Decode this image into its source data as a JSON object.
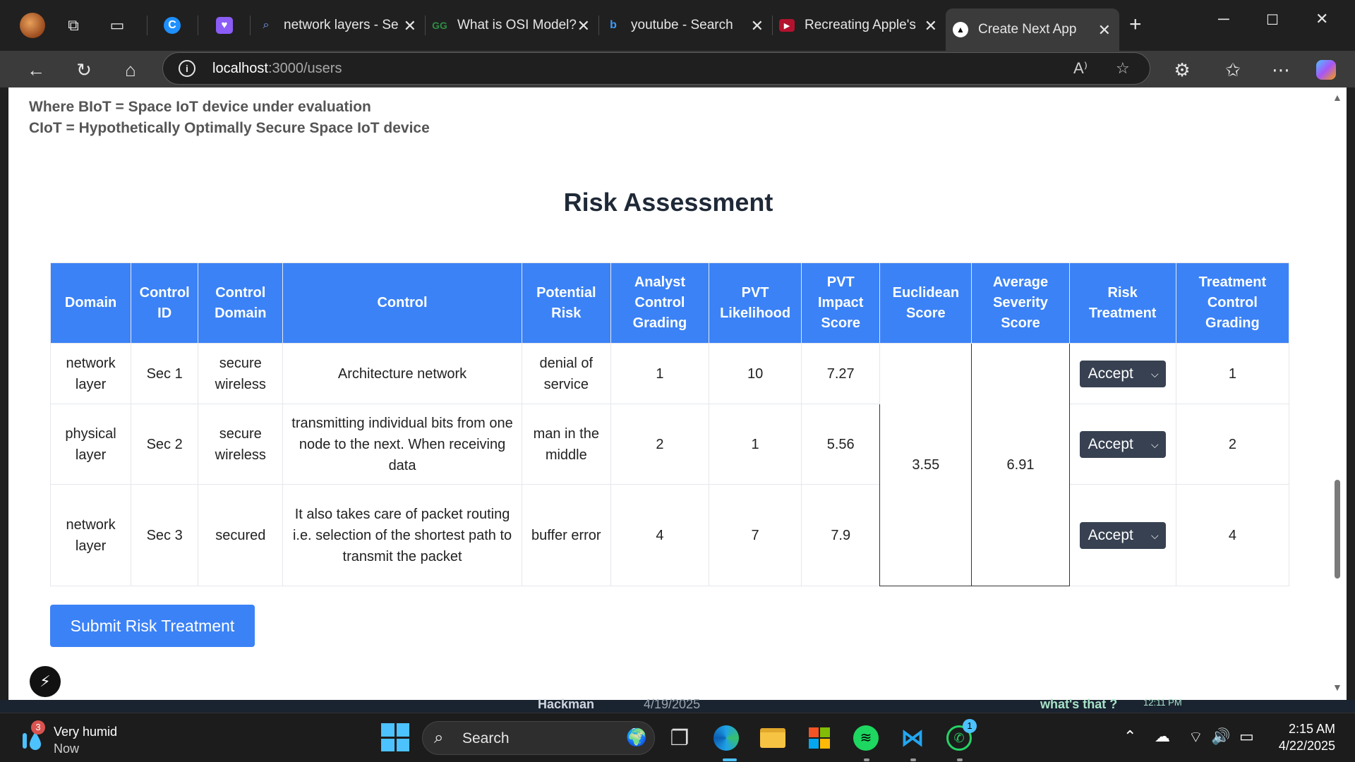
{
  "browser": {
    "tabs": [
      {
        "title": "network layers - Se",
        "favicon": "search-icon",
        "active": false
      },
      {
        "title": "What is OSI Model?",
        "favicon": "geeksforgeeks-icon",
        "active": false
      },
      {
        "title": "youtube - Search",
        "favicon": "bing-icon",
        "active": false
      },
      {
        "title": "Recreating Apple's",
        "favicon": "youtube-icon",
        "active": false
      },
      {
        "title": "Create Next App",
        "favicon": "nextjs-icon",
        "active": true
      }
    ],
    "url_host": "localhost",
    "url_path": ":3000/users"
  },
  "page": {
    "formula_line1": "Where BIoT = Space IoT device under evaluation",
    "formula_line2": "CIoT = Hypothetically Optimally Secure Space IoT device",
    "heading": "Risk Assessment",
    "submit_label": "Submit Risk Treatment"
  },
  "table": {
    "headers": [
      "Domain",
      "Control ID",
      "Control Domain",
      "Control",
      "Potential Risk",
      "Analyst Control Grading",
      "PVT Likelihood",
      "PVT Impact Score",
      "Euclidean Score",
      "Average Severity Score",
      "Risk Treatment",
      "Treatment Control Grading"
    ],
    "rows": [
      {
        "domain": "network layer",
        "control_id": "Sec 1",
        "control_domain": "secure wireless",
        "control": "Architecture network",
        "potential_risk": "denial of service",
        "analyst_grading": "1",
        "pvt_likelihood": "10",
        "pvt_impact": "7.27",
        "risk_treatment": "Accept",
        "treatment_grading": "1"
      },
      {
        "domain": "physical layer",
        "control_id": "Sec 2",
        "control_domain": "secure wireless",
        "control": "transmitting individual bits from one node to the next. When receiving data",
        "potential_risk": "man in the middle",
        "analyst_grading": "2",
        "pvt_likelihood": "1",
        "pvt_impact": "5.56",
        "risk_treatment": "Accept",
        "treatment_grading": "2"
      },
      {
        "domain": "network layer",
        "control_id": "Sec 3",
        "control_domain": "secured",
        "control": "It also takes care of packet routing i.e. selection of the shortest path to transmit the packet",
        "potential_risk": "buffer error",
        "analyst_grading": "4",
        "pvt_likelihood": "7",
        "pvt_impact": "7.9",
        "risk_treatment": "Accept",
        "treatment_grading": "4"
      }
    ],
    "euclidean_score": "3.55",
    "average_severity_score": "6.91"
  },
  "background_window": {
    "name": "Hackman",
    "date": "4/19/2025",
    "message": "what's that ?",
    "time": "12:11 PM"
  },
  "taskbar": {
    "weather_badge": "3",
    "weather_line1": "Very humid",
    "weather_line2": "Now",
    "search_label": "Search",
    "whatsapp_badge": "1",
    "time": "2:15 AM",
    "date": "4/22/2025"
  },
  "colors": {
    "header_blue": "#3b82f6",
    "select_dark": "#374151",
    "chrome_dark": "#202020"
  }
}
